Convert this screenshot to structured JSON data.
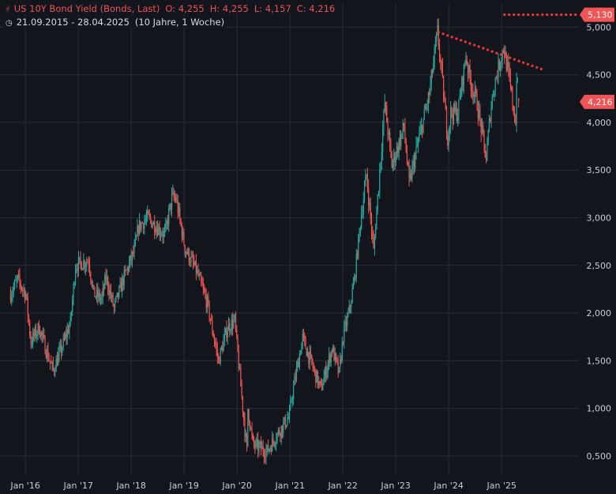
{
  "header": {
    "icon": "bond-chart-icon",
    "instrument": "US 10Y Bond Yield (Bonds, Last)",
    "o_label": "O:",
    "o_value": "4,255",
    "h_label": "H:",
    "h_value": "4,255",
    "l_label": "L:",
    "l_value": "4,157",
    "c_label": "C:",
    "c_value": "4,216",
    "range_icon": "clock-icon",
    "date_range": "21.09.2015 - 28.04.2025",
    "period": "(10 Jahre, 1 Woche)"
  },
  "price_tags": {
    "level_label": "5,130",
    "last_label": "4,216",
    "color": "#f05454"
  },
  "colors": {
    "up": "#26a69a",
    "down": "#ef5350",
    "grid": "#2a2d36",
    "trendline": "#e53935",
    "background": "#13151d"
  },
  "chart_data": {
    "type": "candlestick",
    "title": "US 10Y Bond Yield (Bonds, Last)",
    "x_range": [
      "2015-09-21",
      "2025-04-28"
    ],
    "interval": "1 week",
    "ylim": [
      0.2,
      5.1
    ],
    "yticks": [
      0.5,
      1.0,
      1.5,
      2.0,
      2.5,
      3.0,
      3.5,
      4.0,
      4.5,
      5.0
    ],
    "ytick_labels": [
      "0,500",
      "1,000",
      "1,500",
      "2,000",
      "2,500",
      "3,000",
      "3,500",
      "4,000",
      "4,500",
      "5,000"
    ],
    "xticks": [
      {
        "date": "2016-01-01",
        "label": "Jan '16"
      },
      {
        "date": "2017-01-01",
        "label": "Jan '17"
      },
      {
        "date": "2018-01-01",
        "label": "Jan '18"
      },
      {
        "date": "2019-01-01",
        "label": "Jan '19"
      },
      {
        "date": "2020-01-01",
        "label": "Jan '20"
      },
      {
        "date": "2021-01-01",
        "label": "Jan '21"
      },
      {
        "date": "2022-01-01",
        "label": "Jan '22"
      },
      {
        "date": "2023-01-01",
        "label": "Jan '23"
      },
      {
        "date": "2024-01-01",
        "label": "Jan '24"
      },
      {
        "date": "2025-01-01",
        "label": "Jan '25"
      }
    ],
    "path_points": [
      [
        "2015-09-21",
        2.2
      ],
      [
        "2015-11-09",
        2.35
      ],
      [
        "2016-01-04",
        2.2
      ],
      [
        "2016-02-08",
        1.7
      ],
      [
        "2016-04-04",
        1.85
      ],
      [
        "2016-06-27",
        1.45
      ],
      [
        "2016-07-11",
        1.4
      ],
      [
        "2016-09-12",
        1.65
      ],
      [
        "2016-11-07",
        1.9
      ],
      [
        "2016-12-12",
        2.5
      ],
      [
        "2017-03-13",
        2.55
      ],
      [
        "2017-04-17",
        2.2
      ],
      [
        "2017-06-12",
        2.15
      ],
      [
        "2017-07-10",
        2.38
      ],
      [
        "2017-09-04",
        2.05
      ],
      [
        "2017-11-06",
        2.35
      ],
      [
        "2018-01-22",
        2.65
      ],
      [
        "2018-02-19",
        2.9
      ],
      [
        "2018-04-23",
        3.0
      ],
      [
        "2018-08-20",
        2.82
      ],
      [
        "2018-10-08",
        3.2
      ],
      [
        "2018-11-05",
        3.2
      ],
      [
        "2019-01-07",
        2.68
      ],
      [
        "2019-03-25",
        2.45
      ],
      [
        "2019-06-10",
        2.1
      ],
      [
        "2019-08-26",
        1.5
      ],
      [
        "2019-10-28",
        1.85
      ],
      [
        "2019-12-16",
        1.92
      ],
      [
        "2020-03-09",
        0.55
      ],
      [
        "2020-03-16",
        1.0
      ],
      [
        "2020-04-20",
        0.62
      ],
      [
        "2020-07-27",
        0.55
      ],
      [
        "2020-09-14",
        0.68
      ],
      [
        "2020-12-28",
        0.92
      ],
      [
        "2021-01-11",
        1.1
      ],
      [
        "2021-03-29",
        1.74
      ],
      [
        "2021-05-03",
        1.58
      ],
      [
        "2021-08-02",
        1.2
      ],
      [
        "2021-10-18",
        1.63
      ],
      [
        "2021-12-06",
        1.36
      ],
      [
        "2022-01-03",
        1.76
      ],
      [
        "2022-02-14",
        2.02
      ],
      [
        "2022-03-21",
        2.35
      ],
      [
        "2022-05-09",
        3.05
      ],
      [
        "2022-06-13",
        3.45
      ],
      [
        "2022-08-01",
        2.65
      ],
      [
        "2022-10-17",
        4.2
      ],
      [
        "2022-12-05",
        3.55
      ],
      [
        "2023-02-27",
        3.95
      ],
      [
        "2023-04-03",
        3.35
      ],
      [
        "2023-05-29",
        3.75
      ],
      [
        "2023-08-21",
        4.3
      ],
      [
        "2023-10-16",
        4.95
      ],
      [
        "2023-12-25",
        3.85
      ],
      [
        "2024-01-15",
        4.1
      ],
      [
        "2024-03-04",
        4.1
      ],
      [
        "2024-04-29",
        4.7
      ],
      [
        "2024-05-27",
        4.45
      ],
      [
        "2024-07-15",
        4.2
      ],
      [
        "2024-09-16",
        3.62
      ],
      [
        "2024-10-14",
        4.1
      ],
      [
        "2024-11-11",
        4.4
      ],
      [
        "2025-01-13",
        4.79
      ],
      [
        "2025-02-17",
        4.5
      ],
      [
        "2025-04-07",
        3.99
      ],
      [
        "2025-04-14",
        4.49
      ],
      [
        "2025-04-28",
        4.22
      ]
    ],
    "last": {
      "open": 4.255,
      "high": 4.255,
      "low": 4.157,
      "close": 4.216
    },
    "level_line": {
      "value": 5.13,
      "from": "2025-01-01"
    },
    "trendline": {
      "from": [
        "2023-10-16",
        4.95
      ],
      "to": [
        "2025-10-20",
        4.55
      ]
    }
  }
}
